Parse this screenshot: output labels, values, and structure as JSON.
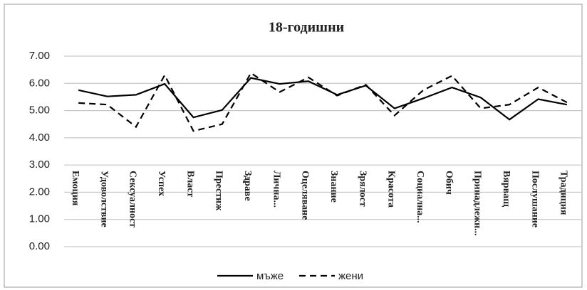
{
  "chart_data": {
    "type": "line",
    "title": "18-годишни",
    "categories": [
      "Емоция",
      "Удоволствие",
      "Сексуалност",
      "Успех",
      "Власт",
      "Престиж",
      "Здраве",
      "Лична...",
      "Оцеляване",
      "Знание",
      "Зрялост",
      "Красота",
      "Социална...",
      "Обич",
      "Принадлежн...",
      "Вярващ",
      "Послушание",
      "Традиция"
    ],
    "series": [
      {
        "name": "мъже",
        "color": "#000000",
        "dash": "solid",
        "values": [
          5.75,
          5.52,
          5.58,
          5.98,
          4.75,
          5.02,
          6.2,
          5.98,
          6.08,
          5.58,
          5.92,
          5.08,
          5.45,
          5.85,
          5.48,
          4.67,
          5.42,
          5.22
        ]
      },
      {
        "name": "жени",
        "color": "#000000",
        "dash": "dashed",
        "values": [
          5.28,
          5.22,
          4.4,
          6.3,
          4.25,
          4.5,
          6.38,
          5.68,
          6.22,
          5.55,
          5.95,
          4.82,
          5.75,
          6.28,
          5.08,
          5.22,
          5.85,
          5.3
        ]
      }
    ],
    "ylim": [
      0,
      7
    ],
    "yticks": [
      {
        "value": 0,
        "label": "0.00"
      },
      {
        "value": 1,
        "label": "1.00"
      },
      {
        "value": 2,
        "label": "2.00"
      },
      {
        "value": 3,
        "label": "3.00"
      },
      {
        "value": 4,
        "label": "4.00"
      },
      {
        "value": 5,
        "label": "5.00"
      },
      {
        "value": 6,
        "label": "6.00"
      },
      {
        "value": 7,
        "label": "7.00"
      }
    ],
    "grid": true,
    "legend": "bottom"
  }
}
